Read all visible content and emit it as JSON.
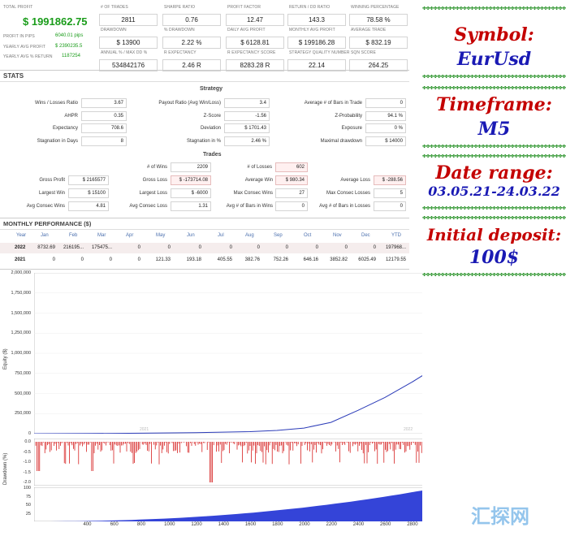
{
  "summary": {
    "total_profit_label": "TOTAL PROFIT",
    "total_profit": "$ 1991862.75",
    "profit_in_pips_label": "PROFIT IN PIPS",
    "profit_in_pips": "6040.01 pips",
    "yearly_avg_profit_label": "YEARLY AVG PROFIT",
    "yearly_avg_profit": "$ 2390235.5",
    "yearly_avg_return_label": "YEARLY AVG % RETURN",
    "yearly_avg_return": "1187254",
    "cards": [
      {
        "label": "# OF TRADES",
        "value": "2811"
      },
      {
        "label": "SHARPE RATIO",
        "value": "0.76"
      },
      {
        "label": "PROFIT FACTOR",
        "value": "12.47"
      },
      {
        "label": "RETURN / DD RATIO",
        "value": "143.3"
      },
      {
        "label": "WINNING PERCENTAGE",
        "value": "78.58 %"
      },
      {
        "label": "DRAWDOWN",
        "value": "$ 13900"
      },
      {
        "label": "% DRAWDOWN",
        "value": "2.22 %"
      },
      {
        "label": "DAILY AVG PROFIT",
        "value": "$ 6128.81"
      },
      {
        "label": "MONTHLY AVG PROFIT",
        "value": "$ 199186.28"
      },
      {
        "label": "AVERAGE TRADE",
        "value": "$ 832.19"
      },
      {
        "label": "ANNUAL % / MAX DD %",
        "value": "534842176"
      },
      {
        "label": "R EXPECTANCY",
        "value": "2.46 R"
      },
      {
        "label": "R EXPECTANCY SCORE",
        "value": "8283.28 R"
      },
      {
        "label": "STRATEGY QUALITY NUMBER",
        "value": "22.14"
      },
      {
        "label": "SQN SCORE",
        "value": "264.25"
      }
    ]
  },
  "stats": {
    "title": "STATS",
    "strategy_title": "Strategy",
    "strategy": [
      [
        {
          "label": "Wins / Losses Ratio",
          "value": "3.67"
        },
        {
          "label": "Payout Ratio (Avg Win/Loss)",
          "value": "3.4"
        },
        {
          "label": "Average # of Bars in Trade",
          "value": "0"
        }
      ],
      [
        {
          "label": "AHPR",
          "value": "0.35"
        },
        {
          "label": "Z-Score",
          "value": "-1.56"
        },
        {
          "label": "Z-Probability",
          "value": "94.1 %"
        }
      ],
      [
        {
          "label": "Expectancy",
          "value": "708.6"
        },
        {
          "label": "Deviation",
          "value": "$ 1701.43"
        },
        {
          "label": "Exposure",
          "value": "0 %"
        }
      ],
      [
        {
          "label": "Stagnation in Days",
          "value": "8"
        },
        {
          "label": "Stagnation in %",
          "value": "2.46 %"
        },
        {
          "label": "Maximal drawdown",
          "value": "$ 14000"
        }
      ]
    ],
    "trades_title": "Trades",
    "wins_label": "# of Wins",
    "wins": "2209",
    "losses_label": "# of Losses",
    "losses": "602",
    "trades": [
      [
        {
          "label": "Gross Profit",
          "value": "$ 2165577"
        },
        {
          "label": "Gross Loss",
          "value": "$ -173714.08"
        },
        {
          "label": "Average Win",
          "value": "$ 980.34"
        },
        {
          "label": "Average Loss",
          "value": "$ -288.56"
        }
      ],
      [
        {
          "label": "Largest Win",
          "value": "$ 15100"
        },
        {
          "label": "Largest Loss",
          "value": "$ -6000"
        },
        {
          "label": "Max Consec Wins",
          "value": "27"
        },
        {
          "label": "Max Consec Losses",
          "value": "5"
        }
      ],
      [
        {
          "label": "Avg Consec Wins",
          "value": "4.81"
        },
        {
          "label": "Avg Consec Loss",
          "value": "1.31"
        },
        {
          "label": "Avg # of Bars in Wins",
          "value": "0"
        },
        {
          "label": "Avg # of Bars in Losses",
          "value": "0"
        }
      ]
    ]
  },
  "monthly": {
    "title": "MONTHLY PERFORMANCE ($)",
    "headers": [
      "Year",
      "Jan",
      "Feb",
      "Mar",
      "Apr",
      "May",
      "Jun",
      "Jul",
      "Aug",
      "Sep",
      "Oct",
      "Nov",
      "Dec",
      "YTD"
    ],
    "rows": [
      [
        "2022",
        "8732.69",
        "216195...",
        "175475...",
        "0",
        "0",
        "0",
        "0",
        "0",
        "0",
        "0",
        "0",
        "0",
        "197968..."
      ],
      [
        "2021",
        "0",
        "0",
        "0",
        "0",
        "121.33",
        "193.18",
        "405.55",
        "382.76",
        "752.26",
        "646.16",
        "3852.82",
        "6025.49",
        "12179.55"
      ]
    ]
  },
  "chart_data": [
    {
      "type": "line",
      "ylabel": "Equity ($)",
      "ylim": [
        0,
        2000000
      ],
      "yticks": [
        "2,000,000",
        "1,750,000",
        "1,500,000",
        "1,250,000",
        "1,000,000",
        "750,000",
        "500,000",
        "250,000",
        "0"
      ],
      "series": [
        {
          "name": "",
          "color": "#2b3bb8",
          "x": [
            0,
            400,
            800,
            1200,
            1600,
            1800,
            2000,
            2200,
            2400,
            2600,
            2800,
            3000,
            3200,
            3400,
            3600,
            3800,
            3900
          ],
          "y": [
            0,
            2000,
            6000,
            12000,
            25000,
            40000,
            70000,
            140000,
            290000,
            450000,
            640000,
            850000,
            1080000,
            1340000,
            1620000,
            1860000,
            1990000
          ]
        }
      ],
      "year_labels": [
        "2021",
        "2022"
      ]
    },
    {
      "type": "bar",
      "ylabel": "Drawdown (%)",
      "yticks": [
        "0.0",
        "-0.5",
        "-1.0",
        "-1.5",
        "-2.0"
      ],
      "ylim": [
        -2.0,
        0.0
      ],
      "color": "#d00000"
    },
    {
      "type": "area",
      "ylim": [
        0,
        100
      ],
      "yticks": [
        "100",
        "75",
        "50",
        "25"
      ],
      "xticks": [
        "400",
        "600",
        "800",
        "1000",
        "1200",
        "1400",
        "1600",
        "1800",
        "2000",
        "2200",
        "2400",
        "2600",
        "2800",
        "3000",
        "3200",
        "3400",
        "3600"
      ],
      "color": "#3444d8"
    }
  ],
  "captions": {
    "symbol_label": "Symbol:",
    "symbol_value": "EurUsd",
    "timeframe_label": "Timeframe:",
    "timeframe_value": "M5",
    "date_range_label": "Date range:",
    "date_range_value": "03.05.21-24.03.22",
    "deposit_label": "Initial deposit:",
    "deposit_value": "100$"
  },
  "watermark": "汇探网",
  "colors": {
    "profit_green": "#1a9c1a",
    "caption_red": "#c40000",
    "caption_blue": "#1a1ab4",
    "header_blue": "#4a6fae",
    "equity_line": "#2b3bb8",
    "drawdown_red": "#d00000"
  }
}
